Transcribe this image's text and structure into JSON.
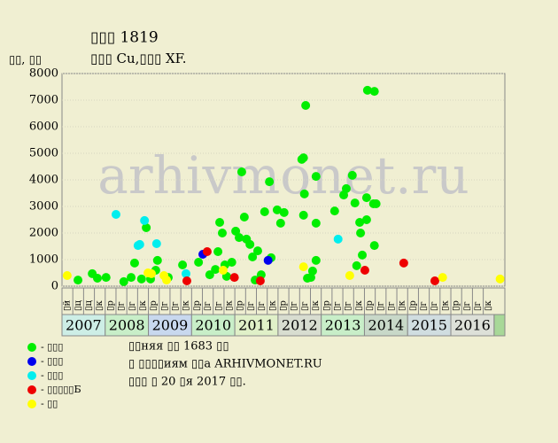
{
  "chart_data": {
    "type": "scatter",
    "title": "▯▯▯ 1819",
    "subtitle": "▯▯▯ Cu,▯▯▯ XF.",
    "y_label": "▯▯, ▯▯",
    "watermark": "arhivmonet.ru",
    "xlim": [
      2007,
      2017.25
    ],
    "ylim": [
      0,
      8000
    ],
    "yticks": [
      0,
      1000,
      2000,
      3000,
      4000,
      5000,
      6000,
      7000,
      8000
    ],
    "grid": true,
    "years": [
      "2007",
      "2008",
      "2009",
      "2010",
      "2011",
      "2012",
      "2013",
      "2014",
      "2015",
      "2016"
    ],
    "year_colors": [
      "#cdeee6",
      "#c8eec8",
      "#c8d8ee",
      "#c8eec8",
      "#e0f0c8",
      "#d8ddd0",
      "#c8eec8",
      "#c8d8c8",
      "#d0dde0",
      "#dde0d8"
    ],
    "quarter_labels": [
      "▯й",
      "▯ц",
      "▯ц",
      "▯к",
      "▯р",
      "▯г",
      "▯г",
      "▯к",
      "▯р",
      "▯г",
      "▯г",
      "▯к",
      "▯р",
      "▯г",
      "▯г",
      "▯к",
      "▯р",
      "▯г",
      "▯г",
      "▯к",
      "▯р",
      "▯г",
      "▯г",
      "▯к",
      "▯р",
      "▯г",
      "▯г",
      "▯к",
      "▯р",
      "▯г",
      "▯г",
      "▯к",
      "▯р",
      "▯г",
      "▯г",
      "▯к",
      "▯р",
      "▯г",
      "▯г",
      "▯к"
    ],
    "series": [
      {
        "name": "- ▯▯▯",
        "color": "#00ee00",
        "x": [
          2007.37,
          2007.7,
          2007.82,
          2008.02,
          2008.43,
          2008.6,
          2008.68,
          2008.84,
          2008.95,
          2009.05,
          2009.17,
          2009.21,
          2009.46,
          2009.79,
          2010.16,
          2010.42,
          2010.55,
          2010.61,
          2010.65,
          2010.71,
          2010.77,
          2010.81,
          2010.93,
          2011.02,
          2011.1,
          2011.16,
          2011.22,
          2011.27,
          2011.35,
          2011.41,
          2011.47,
          2011.53,
          2011.61,
          2011.69,
          2011.8,
          2011.84,
          2011.98,
          2012.06,
          2012.14,
          2012.55,
          2012.59,
          2012.59,
          2012.61,
          2012.64,
          2012.68,
          2012.76,
          2012.8,
          2012.88,
          2012.88,
          2012.88,
          2013.31,
          2013.52,
          2013.58,
          2013.72,
          2013.78,
          2013.82,
          2013.89,
          2013.91,
          2013.95,
          2014.05,
          2014.05,
          2014.07,
          2014.21,
          2014.23,
          2014.23,
          2014.27
        ],
        "values": [
          230,
          470,
          300,
          330,
          170,
          330,
          870,
          270,
          2200,
          270,
          600,
          970,
          330,
          800,
          900,
          430,
          630,
          1300,
          2400,
          2000,
          800,
          370,
          900,
          2070,
          1830,
          4300,
          2600,
          1770,
          1570,
          1100,
          230,
          1330,
          430,
          2800,
          3930,
          1070,
          2870,
          2370,
          2770,
          4770,
          4830,
          2670,
          3470,
          6800,
          300,
          330,
          570,
          4130,
          970,
          2370,
          2830,
          3430,
          3670,
          4170,
          3130,
          770,
          2400,
          2000,
          1170,
          3330,
          2500,
          7370,
          3100,
          7330,
          1530,
          3100
        ]
      },
      {
        "name": "- ▯▯▯",
        "color": "#0000ee",
        "x": [
          2010.26,
          2011.77
        ],
        "values": [
          1200,
          970
        ]
      },
      {
        "name": "- ▯▯▯",
        "color": "#00eeee",
        "x": [
          2008.25,
          2008.76,
          2008.8,
          2008.91,
          2009.19,
          2009.87,
          2013.39
        ],
        "values": [
          2700,
          1530,
          1570,
          2470,
          1600,
          470,
          1770
        ]
      },
      {
        "name": "- ▯▯▯▯▯Б",
        "color": "#ee0000",
        "x": [
          2009.89,
          2010.36,
          2010.99,
          2011.59,
          2014.01,
          2014.91,
          2015.63
        ],
        "values": [
          200,
          1300,
          330,
          200,
          600,
          870,
          200
        ]
      },
      {
        "name": "- ▯▯",
        "color": "#ffff00",
        "x": [
          2007.12,
          2008.99,
          2009.07,
          2009.36,
          2009.42,
          2010.73,
          2012.59,
          2013.66,
          2015.81,
          2017.14
        ],
        "values": [
          400,
          500,
          470,
          400,
          230,
          600,
          730,
          400,
          330,
          270
        ]
      }
    ],
    "notes": [
      "▯▯няя ▯▯ 1683 ▯▯",
      "▯ ▯▯▯▯иям ▯▯а ARHIVMONET.RU",
      "▯▯▯ ▯ 20 ▯я 2017 ▯▯."
    ]
  }
}
